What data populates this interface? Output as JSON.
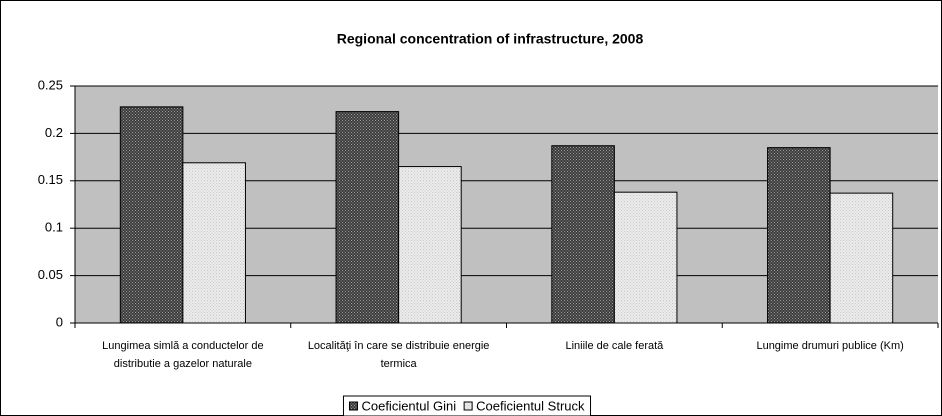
{
  "chart_data": {
    "type": "bar",
    "title": "Regional concentration of infrastructure, 2008",
    "categories": [
      "Lungimea simlă a conductelor de distributie a gazelor naturale",
      "Localităţi în care se distribuie energie termica",
      "Liniile de cale ferată",
      "Lungime drumuri publice (Km)"
    ],
    "series": [
      {
        "name": "Coeficientul Gini",
        "color": "#3c3c3c",
        "values": [
          0.228,
          0.223,
          0.187,
          0.185
        ]
      },
      {
        "name": "Coeficientul Struck",
        "color": "#ececec",
        "values": [
          0.169,
          0.165,
          0.138,
          0.137
        ]
      }
    ],
    "ylim": [
      0,
      0.25
    ],
    "yticks": [
      0,
      0.05,
      0.1,
      0.15,
      0.2,
      0.25
    ],
    "grid": true,
    "legend": "bottom"
  }
}
